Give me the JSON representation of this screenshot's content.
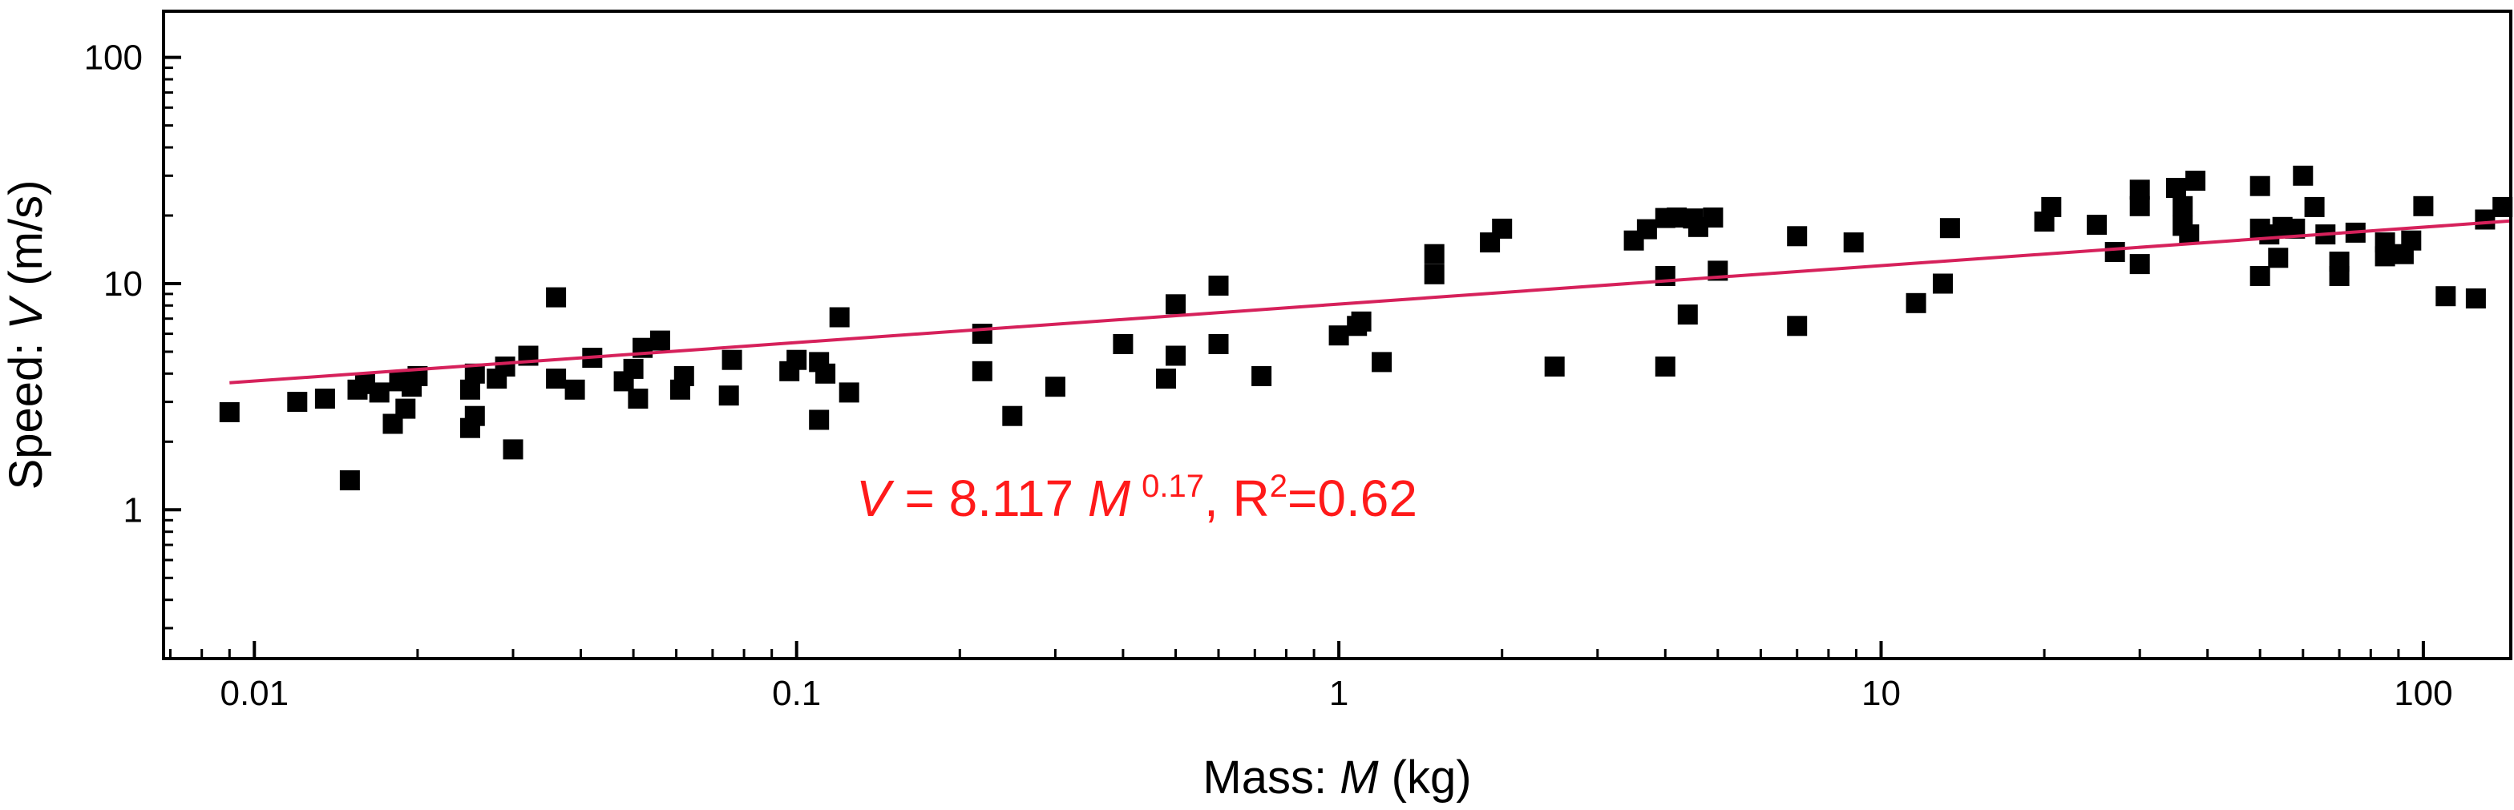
{
  "chart_data": {
    "type": "scatter",
    "xscale": "log",
    "yscale": "log",
    "xlim": [
      0.0068,
      145
    ],
    "ylim": [
      0.22,
      160
    ],
    "xlabel_prefix": "Mass: ",
    "xlabel_var": "M",
    "xlabel_suffix": " (kg)",
    "ylabel_prefix": "Speed: ",
    "ylabel_var": "V",
    "ylabel_suffix": " (m/s)",
    "xticks": [
      0.01,
      0.1,
      1,
      10,
      100
    ],
    "xtick_labels": [
      "0.01",
      "0.1",
      "1",
      "10",
      "100"
    ],
    "yticks": [
      1,
      10,
      100
    ],
    "ytick_labels": [
      "1",
      "10",
      "100"
    ],
    "colors": {
      "points": "#000000",
      "fit": "#d6215b",
      "annotation": "#ff1a1a",
      "axes": "#000000"
    },
    "fit": {
      "a": 8.117,
      "b": 0.17,
      "x_range": [
        0.009,
        145
      ]
    },
    "annotation": {
      "var_v": "V",
      "eq_mid": " = 8.117 ",
      "var_m": "M",
      "exp": "0.17",
      "comma": ",  R",
      "r_sup": "2",
      "r_val": "=0.62"
    },
    "points": [
      [
        0.009,
        2.7
      ],
      [
        0.012,
        3.0
      ],
      [
        0.0135,
        3.1
      ],
      [
        0.015,
        1.35
      ],
      [
        0.0155,
        3.4
      ],
      [
        0.016,
        3.6
      ],
      [
        0.017,
        3.3
      ],
      [
        0.018,
        2.4
      ],
      [
        0.0185,
        3.7
      ],
      [
        0.019,
        2.8
      ],
      [
        0.0195,
        3.5
      ],
      [
        0.02,
        3.9
      ],
      [
        0.025,
        3.4
      ],
      [
        0.025,
        2.3
      ],
      [
        0.0255,
        4.0
      ],
      [
        0.0255,
        2.6
      ],
      [
        0.028,
        3.8
      ],
      [
        0.029,
        4.3
      ],
      [
        0.03,
        1.85
      ],
      [
        0.032,
        4.8
      ],
      [
        0.036,
        8.7
      ],
      [
        0.036,
        3.8
      ],
      [
        0.039,
        3.4
      ],
      [
        0.042,
        4.7
      ],
      [
        0.048,
        3.7
      ],
      [
        0.05,
        4.2
      ],
      [
        0.051,
        3.1
      ],
      [
        0.052,
        5.2
      ],
      [
        0.056,
        5.6
      ],
      [
        0.061,
        3.4
      ],
      [
        0.062,
        3.9
      ],
      [
        0.075,
        3.2
      ],
      [
        0.076,
        4.6
      ],
      [
        0.097,
        4.1
      ],
      [
        0.1,
        4.6
      ],
      [
        0.11,
        4.5
      ],
      [
        0.11,
        2.5
      ],
      [
        0.113,
        4.0
      ],
      [
        0.12,
        7.1
      ],
      [
        0.125,
        3.3
      ],
      [
        0.22,
        6.0
      ],
      [
        0.22,
        4.1
      ],
      [
        0.25,
        2.6
      ],
      [
        0.3,
        3.5
      ],
      [
        0.4,
        5.4
      ],
      [
        0.48,
        3.8
      ],
      [
        0.5,
        8.1
      ],
      [
        0.5,
        4.8
      ],
      [
        0.6,
        9.8
      ],
      [
        0.6,
        5.4
      ],
      [
        0.72,
        3.9
      ],
      [
        1.0,
        5.9
      ],
      [
        1.08,
        6.5
      ],
      [
        1.1,
        6.8
      ],
      [
        1.2,
        4.5
      ],
      [
        1.5,
        13.5
      ],
      [
        1.5,
        11.0
      ],
      [
        1.9,
        15.2
      ],
      [
        2.0,
        17.5
      ],
      [
        2.5,
        4.3
      ],
      [
        3.5,
        15.5
      ],
      [
        3.7,
        17.4
      ],
      [
        4.0,
        19.5
      ],
      [
        4.0,
        10.8
      ],
      [
        4.0,
        4.3
      ],
      [
        4.2,
        19.6
      ],
      [
        4.4,
        7.3
      ],
      [
        4.5,
        19.4
      ],
      [
        4.6,
        17.8
      ],
      [
        4.9,
        19.6
      ],
      [
        5.0,
        11.4
      ],
      [
        7.0,
        16.2
      ],
      [
        7.0,
        6.5
      ],
      [
        8.9,
        15.2
      ],
      [
        11.6,
        8.2
      ],
      [
        13.0,
        10.0
      ],
      [
        13.4,
        17.6
      ],
      [
        20.0,
        18.8
      ],
      [
        20.6,
        21.8
      ],
      [
        25.0,
        18.2
      ],
      [
        27.0,
        13.8
      ],
      [
        30.0,
        26.0
      ],
      [
        30.0,
        22.0
      ],
      [
        30.0,
        12.2
      ],
      [
        35.0,
        26.5
      ],
      [
        36.0,
        22.0
      ],
      [
        36.0,
        18.0
      ],
      [
        37.0,
        16.5
      ],
      [
        38.0,
        28.5
      ],
      [
        50.0,
        27.0
      ],
      [
        50.0,
        17.5
      ],
      [
        50.0,
        10.8
      ],
      [
        52.0,
        16.5
      ],
      [
        54.0,
        13.0
      ],
      [
        55.0,
        17.8
      ],
      [
        58.0,
        17.5
      ],
      [
        60.0,
        30.0
      ],
      [
        63.0,
        21.8
      ],
      [
        66.0,
        16.5
      ],
      [
        70.0,
        12.5
      ],
      [
        70.0,
        10.8
      ],
      [
        75.0,
        16.8
      ],
      [
        85.0,
        15.2
      ],
      [
        85.0,
        13.2
      ],
      [
        92.0,
        13.5
      ],
      [
        95.0,
        15.5
      ],
      [
        100.0,
        22.0
      ],
      [
        110.0,
        8.8
      ],
      [
        125.0,
        8.6
      ],
      [
        130.0,
        19.2
      ],
      [
        140.0,
        21.8
      ]
    ]
  }
}
